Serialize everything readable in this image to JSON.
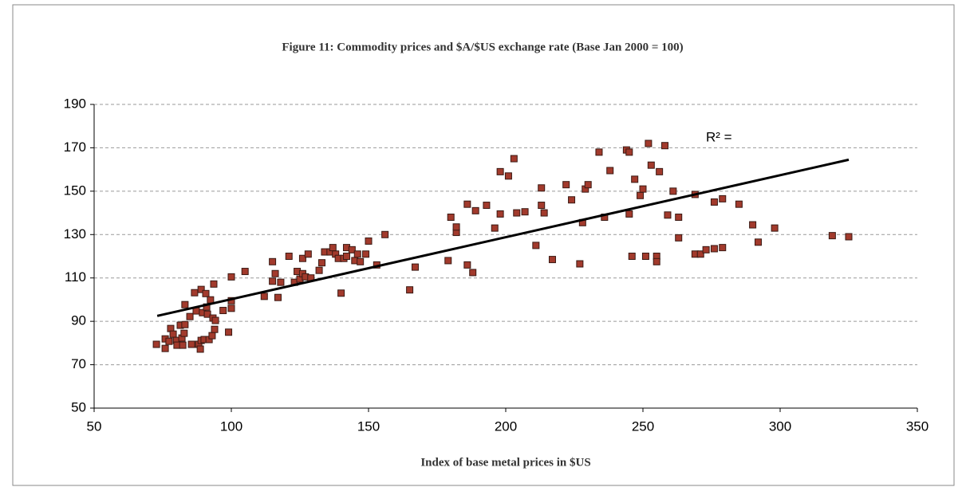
{
  "chart_data": {
    "type": "scatter",
    "title": "Figure 11: Commodity prices and $A/$US exchange rate (Base Jan 2000 = 100)",
    "x_label": "Index of base metal prices in $US",
    "annotation": "R² =",
    "color": "#a23a2c",
    "x": [
      72.7,
      75.9,
      75.9,
      77.3,
      77.9,
      78.8,
      80,
      80.2,
      81.4,
      82,
      82.3,
      82.8,
      83.1,
      83.1,
      84.9,
      85.5,
      86.6,
      87.2,
      88.1,
      88.7,
      89,
      89,
      89.5,
      90.1,
      90.7,
      91,
      91.3,
      91.9,
      92.4,
      93,
      93.3,
      93.6,
      93.9,
      94.2,
      97,
      99,
      100,
      100,
      100,
      105,
      112,
      115,
      115,
      116,
      117,
      118,
      121,
      123,
      124,
      125,
      126,
      126,
      127,
      128,
      129,
      132,
      133,
      134,
      136,
      137,
      138,
      139,
      140,
      141,
      142,
      142,
      144,
      145,
      146,
      147,
      149,
      150,
      153,
      156,
      165,
      167,
      179,
      180,
      182,
      182,
      186,
      186,
      188,
      189,
      193,
      196,
      198,
      198,
      201,
      203,
      204,
      207,
      211,
      213,
      213,
      214,
      217,
      222,
      224,
      227,
      228,
      229,
      230,
      234,
      236,
      238,
      244,
      245,
      245,
      246,
      247,
      249,
      250,
      251,
      252,
      253,
      255,
      255,
      256,
      258,
      259,
      261,
      263,
      263,
      269,
      269,
      271,
      273,
      276,
      276,
      279,
      279,
      285,
      290,
      292,
      298,
      319,
      325
    ],
    "values": [
      79.4,
      77.5,
      81.9,
      80.8,
      86.7,
      84.1,
      81.2,
      79,
      88.2,
      82.3,
      79,
      84.5,
      88.5,
      97.7,
      92.2,
      79.4,
      103.2,
      94.8,
      79.4,
      77.2,
      104.7,
      81.2,
      94,
      81.6,
      102.8,
      96.6,
      93.3,
      81.6,
      99.9,
      83.4,
      91.5,
      107.2,
      86.3,
      90.4,
      95,
      85,
      96,
      99.5,
      110.5,
      113,
      101.5,
      117.5,
      108.5,
      112,
      101,
      108,
      120,
      108,
      113,
      109.5,
      112,
      119,
      110.5,
      121,
      110,
      113.5,
      117,
      122,
      122,
      124,
      121,
      119,
      103,
      119,
      120,
      124,
      123,
      118,
      121,
      117.5,
      121,
      127,
      116,
      130,
      104.5,
      115,
      118,
      138,
      131,
      133.5,
      144,
      116,
      112.5,
      141,
      143.5,
      133,
      139.5,
      159,
      157,
      165,
      140,
      140.5,
      125,
      151.5,
      143.5,
      140,
      118.5,
      153,
      146,
      116.5,
      135.5,
      151,
      153,
      168,
      138,
      159.5,
      169,
      168,
      139.5,
      120,
      155.5,
      148,
      151,
      120,
      172,
      162,
      120,
      117.5,
      159,
      171,
      139,
      150,
      138,
      128.5,
      121,
      148.5,
      121,
      123,
      145,
      123.5,
      124,
      146.5,
      144,
      134.5,
      126.5,
      133,
      129.5,
      129
    ],
    "trendline": {
      "x": [
        73,
        325
      ],
      "y": [
        92.5,
        164.5
      ]
    },
    "xlim": [
      50,
      350
    ],
    "xticks": [
      50,
      100,
      150,
      200,
      250,
      300,
      350
    ],
    "ylim": [
      50,
      190
    ],
    "yticks": [
      50,
      70,
      90,
      110,
      130,
      150,
      170,
      190
    ],
    "grid": true
  }
}
